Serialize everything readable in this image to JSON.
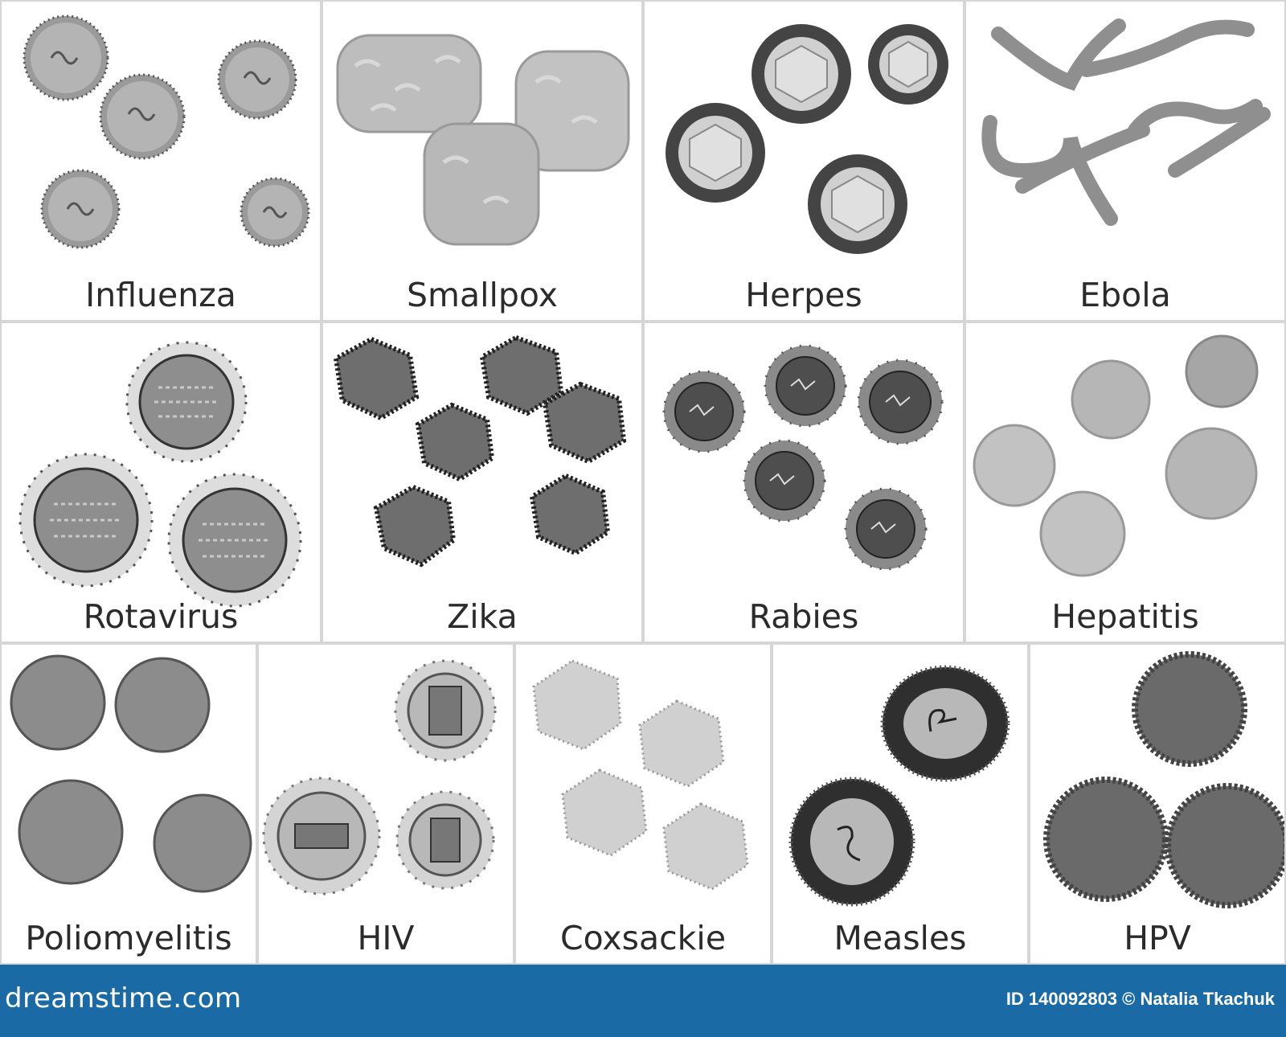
{
  "cells": [
    {
      "label": "Influenza"
    },
    {
      "label": "Smallpox"
    },
    {
      "label": "Herpes"
    },
    {
      "label": "Ebola"
    },
    {
      "label": "Rotavirus"
    },
    {
      "label": "Zika"
    },
    {
      "label": "Rabies"
    },
    {
      "label": "Hepatitis"
    },
    {
      "label": "Poliomyelitis"
    },
    {
      "label": "HIV"
    },
    {
      "label": "Coxsackie"
    },
    {
      "label": "Measles"
    },
    {
      "label": "HPV"
    }
  ],
  "footer": {
    "logo": "dreamstime.com",
    "credit": "ID 140092803 © Natalia Tkachuk"
  },
  "colors": {
    "background": "#ffffff",
    "grid_line": "#d6d6d6",
    "footer": "#1a6aa5",
    "label_text": "#2b2b2b"
  }
}
